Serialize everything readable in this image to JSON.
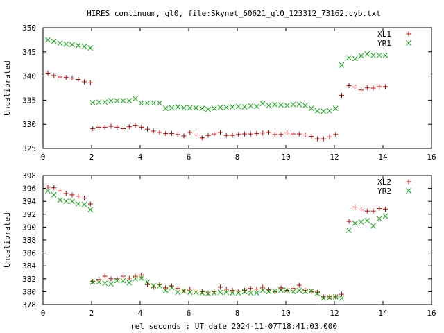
{
  "title": "HIRES continuum, gl0, file:Skynet_60621_gl0_123312_73162.cyb.txt",
  "xlabel": "rel seconds : UT date 2024-11-07T18:41:03.000",
  "chart_data": [
    {
      "type": "scatter",
      "ylabel": "Uncalibrated",
      "xlim": [
        0,
        16
      ],
      "ylim": [
        325,
        350
      ],
      "x_ticks": [
        "0",
        "2",
        "4",
        "6",
        "8",
        "10",
        "12",
        "14",
        "16"
      ],
      "y_ticks": [
        "325",
        "330",
        "335",
        "340",
        "345",
        "350"
      ],
      "legend_position": "top-right",
      "grid": false,
      "series": [
        {
          "name": "XL1",
          "marker": "plus",
          "color": "#cc0000",
          "x": [
            0.2,
            0.45,
            0.7,
            0.95,
            1.2,
            1.45,
            1.7,
            1.95,
            2.05,
            2.3,
            2.55,
            2.8,
            3.05,
            3.3,
            3.55,
            3.8,
            4.05,
            4.3,
            4.55,
            4.8,
            5.05,
            5.3,
            5.55,
            5.8,
            6.05,
            6.3,
            6.55,
            6.8,
            7.05,
            7.3,
            7.55,
            7.8,
            8.05,
            8.3,
            8.55,
            8.8,
            9.05,
            9.3,
            9.55,
            9.8,
            10.05,
            10.3,
            10.55,
            10.8,
            11.05,
            11.3,
            11.55,
            11.8,
            12.05,
            12.3,
            12.6,
            12.85,
            13.1,
            13.35,
            13.6,
            13.85,
            14.1
          ],
          "y": [
            340.6,
            340.1,
            339.8,
            339.7,
            339.6,
            339.3,
            338.8,
            338.6,
            329.1,
            329.4,
            329.4,
            329.6,
            329.4,
            329.1,
            329.5,
            329.8,
            329.4,
            329.0,
            328.6,
            328.3,
            328.1,
            328.1,
            327.9,
            327.6,
            328.3,
            327.8,
            327.2,
            327.7,
            328.0,
            328.3,
            327.7,
            327.7,
            327.9,
            328.0,
            328.0,
            328.1,
            328.2,
            328.3,
            327.9,
            327.9,
            328.2,
            328.0,
            328.0,
            327.8,
            327.5,
            327.0,
            327.0,
            327.4,
            327.9,
            336.0,
            338.0,
            337.7,
            337.1,
            337.6,
            337.5,
            337.8,
            337.8
          ]
        },
        {
          "name": "YR1",
          "marker": "cross",
          "color": "#00aa00",
          "x": [
            0.2,
            0.45,
            0.7,
            0.95,
            1.2,
            1.45,
            1.7,
            1.95,
            2.05,
            2.3,
            2.55,
            2.8,
            3.05,
            3.3,
            3.55,
            3.8,
            4.05,
            4.3,
            4.55,
            4.8,
            5.05,
            5.3,
            5.55,
            5.8,
            6.05,
            6.3,
            6.55,
            6.8,
            7.05,
            7.3,
            7.55,
            7.8,
            8.05,
            8.3,
            8.55,
            8.8,
            9.05,
            9.3,
            9.55,
            9.8,
            10.05,
            10.3,
            10.55,
            10.8,
            11.05,
            11.3,
            11.55,
            11.8,
            12.05,
            12.3,
            12.6,
            12.85,
            13.1,
            13.35,
            13.6,
            13.85,
            14.1
          ],
          "y": [
            347.5,
            347.2,
            346.8,
            346.6,
            346.5,
            346.3,
            346.1,
            345.8,
            334.5,
            334.6,
            334.6,
            334.9,
            334.9,
            334.9,
            334.9,
            335.3,
            334.4,
            334.4,
            334.4,
            334.4,
            333.3,
            333.4,
            333.6,
            333.4,
            333.4,
            333.4,
            333.3,
            333.1,
            333.3,
            333.5,
            333.5,
            333.6,
            333.7,
            333.6,
            333.8,
            333.7,
            334.3,
            333.9,
            334.1,
            334.0,
            333.9,
            334.1,
            334.1,
            333.9,
            333.3,
            332.8,
            332.7,
            332.8,
            333.3,
            342.3,
            343.8,
            343.6,
            344.2,
            344.6,
            344.3,
            344.3,
            344.3
          ]
        }
      ]
    },
    {
      "type": "scatter",
      "ylabel": "Uncalibrated",
      "xlim": [
        0,
        16
      ],
      "ylim": [
        378,
        398
      ],
      "x_ticks": [
        "0",
        "2",
        "4",
        "6",
        "8",
        "10",
        "12",
        "14",
        "16"
      ],
      "y_ticks": [
        "378",
        "380",
        "382",
        "384",
        "386",
        "388",
        "390",
        "392",
        "394",
        "396",
        "398"
      ],
      "legend_position": "top-right",
      "grid": false,
      "series": [
        {
          "name": "XL2",
          "marker": "plus",
          "color": "#cc0000",
          "x": [
            0.2,
            0.45,
            0.7,
            0.95,
            1.2,
            1.45,
            1.7,
            1.95,
            2.05,
            2.3,
            2.55,
            2.8,
            3.05,
            3.3,
            3.55,
            3.8,
            4.05,
            4.3,
            4.55,
            4.8,
            5.05,
            5.3,
            5.55,
            5.8,
            6.05,
            6.3,
            6.55,
            6.8,
            7.05,
            7.3,
            7.55,
            7.8,
            8.05,
            8.3,
            8.55,
            8.8,
            9.05,
            9.3,
            9.55,
            9.8,
            10.05,
            10.3,
            10.55,
            10.8,
            11.05,
            11.3,
            11.55,
            11.8,
            12.05,
            12.3,
            12.6,
            12.85,
            13.1,
            13.35,
            13.6,
            13.85,
            14.1
          ],
          "y": [
            396.2,
            396.1,
            395.6,
            395.2,
            395.0,
            394.8,
            394.5,
            393.6,
            381.6,
            381.9,
            382.4,
            382.0,
            382.0,
            382.4,
            382.1,
            382.4,
            382.6,
            381.1,
            380.7,
            381.1,
            380.6,
            380.9,
            380.5,
            380.1,
            380.4,
            380.1,
            380.0,
            379.8,
            380.0,
            380.7,
            380.4,
            380.2,
            380.1,
            380.2,
            380.5,
            380.4,
            380.7,
            380.3,
            380.0,
            380.6,
            380.2,
            380.5,
            381.0,
            380.2,
            380.0,
            379.9,
            379.2,
            379.2,
            379.2,
            379.6,
            390.9,
            393.1,
            392.7,
            392.5,
            392.5,
            392.9,
            392.8
          ]
        },
        {
          "name": "YR2",
          "marker": "cross",
          "color": "#00aa00",
          "x": [
            0.2,
            0.45,
            0.7,
            0.95,
            1.2,
            1.45,
            1.7,
            1.95,
            2.05,
            2.3,
            2.55,
            2.8,
            3.05,
            3.3,
            3.55,
            3.8,
            4.05,
            4.3,
            4.55,
            4.8,
            5.05,
            5.3,
            5.55,
            5.8,
            6.05,
            6.3,
            6.55,
            6.8,
            7.05,
            7.3,
            7.55,
            7.8,
            8.05,
            8.3,
            8.55,
            8.8,
            9.05,
            9.3,
            9.55,
            9.8,
            10.05,
            10.3,
            10.55,
            10.8,
            11.05,
            11.3,
            11.55,
            11.8,
            12.05,
            12.3,
            12.6,
            12.85,
            13.1,
            13.35,
            13.6,
            13.85,
            14.1
          ],
          "y": [
            395.6,
            395.0,
            394.2,
            394.0,
            394.0,
            393.6,
            393.5,
            392.7,
            381.5,
            381.5,
            381.3,
            381.2,
            381.7,
            381.7,
            381.4,
            382.0,
            382.1,
            381.5,
            380.9,
            380.9,
            380.2,
            380.6,
            379.9,
            380.1,
            379.9,
            379.9,
            379.8,
            379.7,
            379.8,
            379.9,
            379.9,
            379.8,
            379.8,
            380.0,
            379.8,
            379.8,
            380.2,
            380.0,
            380.1,
            380.2,
            380.2,
            380.0,
            380.2,
            380.0,
            380.1,
            379.7,
            379.0,
            379.1,
            379.2,
            379.0,
            389.5,
            390.6,
            390.8,
            391.0,
            390.2,
            391.3,
            391.7
          ]
        }
      ]
    }
  ]
}
